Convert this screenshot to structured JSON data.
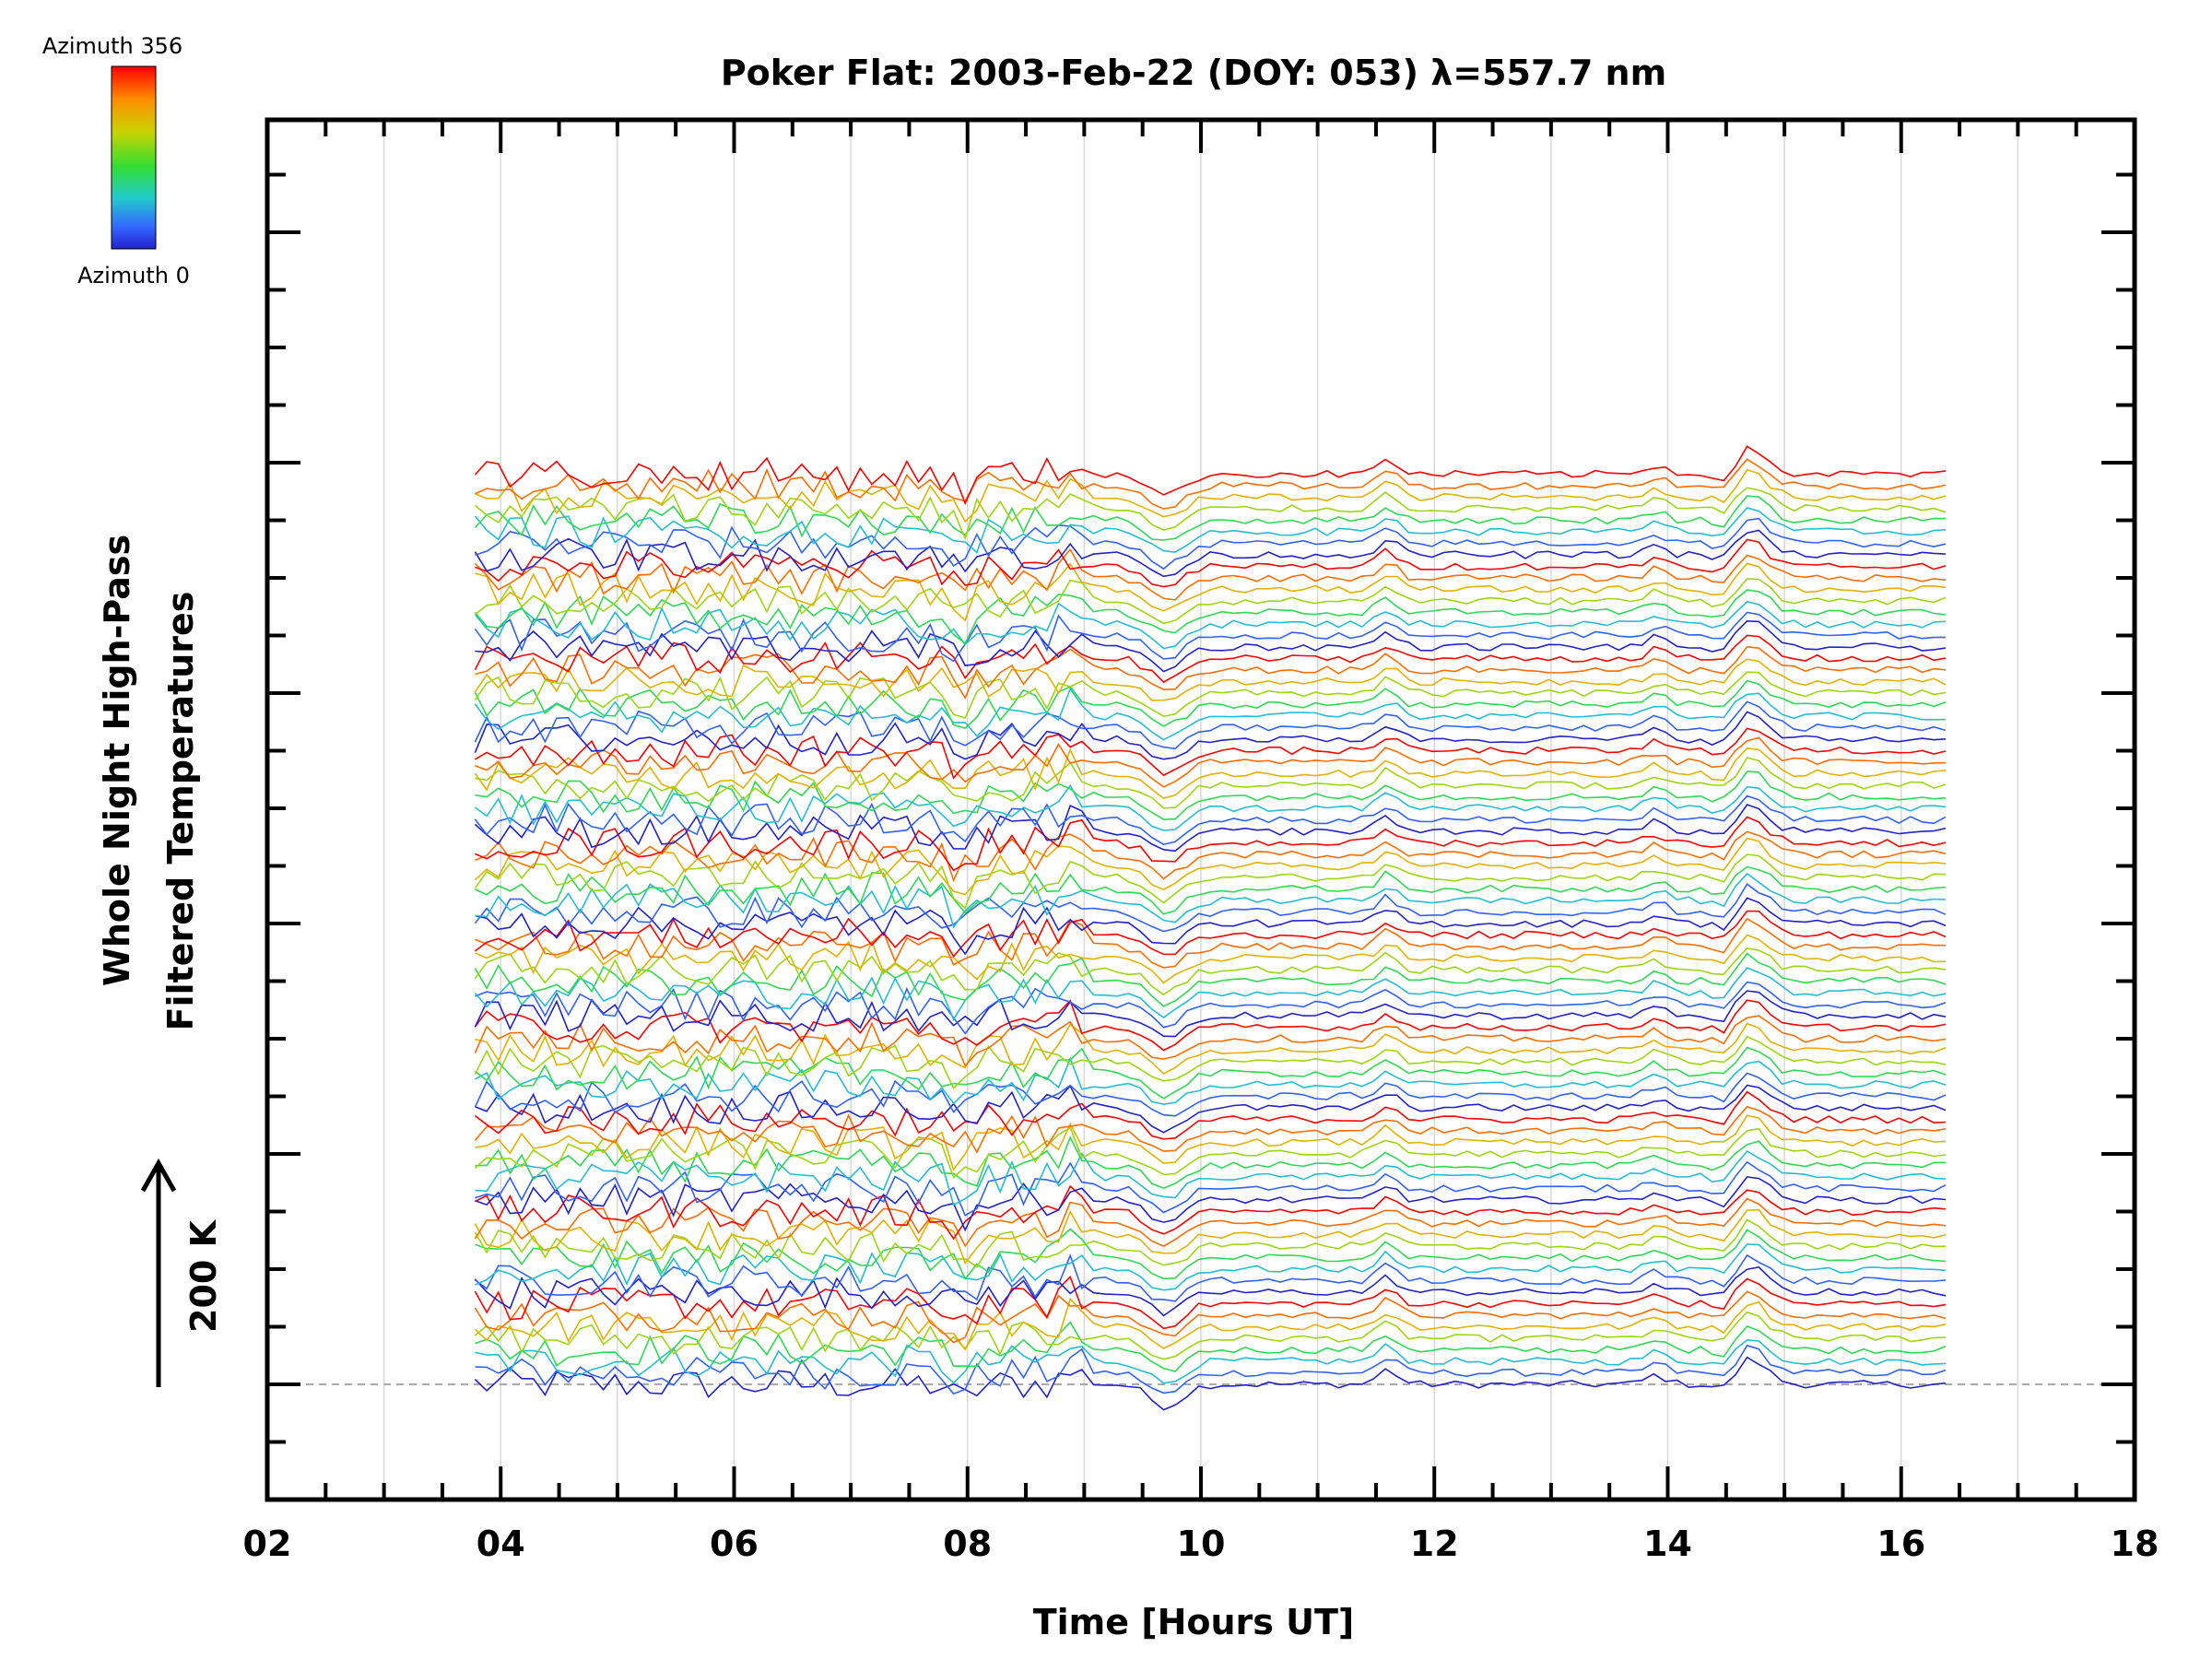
{
  "chart_data": {
    "type": "line",
    "title": "Poker Flat: 2003-Feb-22 (DOY: 053) λ=557.7 nm",
    "xlabel": "Time [Hours UT]",
    "ylabel_lines": [
      "Whole Night High-Pass",
      "Filtered Temperatures"
    ],
    "xlim": [
      2,
      18
    ],
    "x_ticks": [
      2,
      4,
      6,
      8,
      10,
      12,
      14,
      16,
      18
    ],
    "x_tick_labels": [
      "02",
      "04",
      "06",
      "08",
      "10",
      "12",
      "14",
      "16",
      "18"
    ],
    "data_x_range": [
      3.78,
      16.45
    ],
    "time_step_hours": 0.1,
    "grid_x_hours": [
      3,
      4,
      5,
      6,
      7,
      8,
      9,
      10,
      11,
      12,
      13,
      14,
      15,
      16,
      17
    ],
    "baseline_dashed": true,
    "y_offset_per_trace_K": 12.5,
    "y_units": "K",
    "scale_bar": {
      "value": 200,
      "unit": "K",
      "label": "200 K"
    },
    "colorbar": {
      "top_label": "Azimuth 356",
      "bottom_label": "Azimuth 0",
      "colormap": [
        "#ff0000",
        "#ff8c00",
        "#c8d400",
        "#33dd33",
        "#22cccc",
        "#3366ff",
        "#2222cc"
      ]
    },
    "series": {
      "count": 80,
      "azimuth_cycle": [
        0,
        55,
        110,
        165,
        220,
        265,
        310,
        356
      ],
      "common_features": [
        {
          "x": 7.95,
          "delta_K": -18
        },
        {
          "x": 8.9,
          "delta_K": 14
        },
        {
          "x": 9.7,
          "delta_K": -24
        },
        {
          "x": 11.6,
          "delta_K": 16
        },
        {
          "x": 13.9,
          "delta_K": 10
        },
        {
          "x": 14.5,
          "delta_K": -12
        },
        {
          "x": 14.7,
          "delta_K": 28
        }
      ],
      "early_noise_K": 22,
      "late_noise_K": 4
    }
  }
}
